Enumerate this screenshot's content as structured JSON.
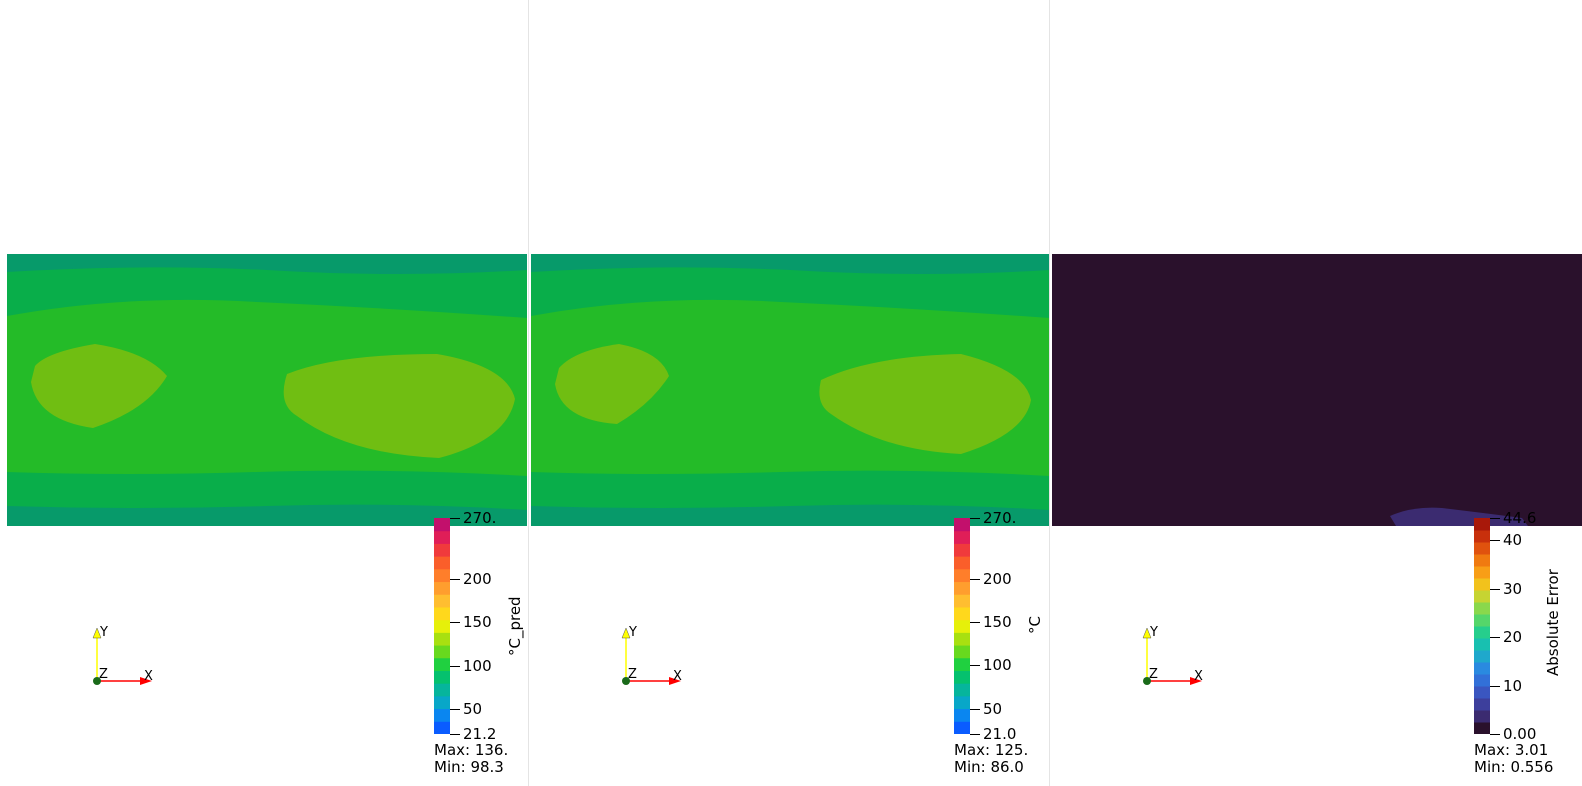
{
  "colors": {
    "field_outer": "#079a6a",
    "field_mid": "#09ae4a",
    "field_inner": "#24bb28",
    "field_hot": "#70be12",
    "error_bg": "#2a112c",
    "error_patch": "#3b2b70",
    "axis_x": "#ff0000",
    "axis_y": "#ffff00",
    "axis_origin": "#1a6a1a"
  },
  "icons": {
    "orientation": "axes-triad-icon"
  },
  "axes": {
    "x": "X",
    "y": "Y",
    "z": "Z"
  },
  "views": [
    {
      "name": "prediction",
      "colormap": "rainbow",
      "bar_title": "°C_pred",
      "range": [
        21.2,
        270
      ],
      "ticks": [
        {
          "label": "270.",
          "value": 270
        },
        {
          "label": "200",
          "value": 200
        },
        {
          "label": "150",
          "value": 150
        },
        {
          "label": "100",
          "value": 100
        },
        {
          "label": "50",
          "value": 50
        },
        {
          "label": "21.2",
          "value": 21.2
        }
      ],
      "max_label": "Max: 136.",
      "min_label": "Min: 98.3"
    },
    {
      "name": "ground-truth",
      "colormap": "rainbow",
      "bar_title": "°C",
      "range": [
        21.0,
        270
      ],
      "ticks": [
        {
          "label": "270.",
          "value": 270
        },
        {
          "label": "200",
          "value": 200
        },
        {
          "label": "150",
          "value": 150
        },
        {
          "label": "100",
          "value": 100
        },
        {
          "label": "50",
          "value": 50
        },
        {
          "label": "21.0",
          "value": 21.0
        }
      ],
      "max_label": "Max: 125.",
      "min_label": "Min: 86.0"
    },
    {
      "name": "absolute-error",
      "colormap": "error",
      "bar_title": "Absolute Error",
      "range": [
        0,
        44.6
      ],
      "ticks": [
        {
          "label": "44.6",
          "value": 44.6
        },
        {
          "label": "40",
          "value": 40
        },
        {
          "label": "30",
          "value": 30
        },
        {
          "label": "20",
          "value": 20
        },
        {
          "label": "10",
          "value": 10
        },
        {
          "label": "0.00",
          "value": 0
        }
      ],
      "max_label": "Max: 3.01",
      "min_label": "Min: 0.556"
    }
  ]
}
